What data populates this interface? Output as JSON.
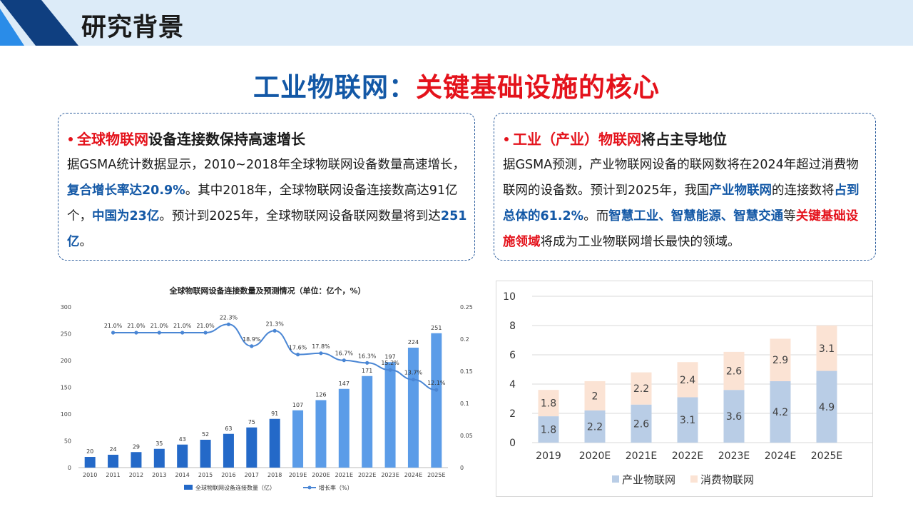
{
  "header": {
    "title": "研究背景"
  },
  "main_title": {
    "part1": "工业物联网：",
    "part2": "关键基础设施的核心"
  },
  "left_card": {
    "head_red": "全球物联网",
    "head_rest": "设备连接数保持高速增长",
    "body": [
      {
        "t": "据GSMA统计数据显示，2010~2018年全球物联网设备数量高速增长，",
        "s": ""
      },
      {
        "t": "复合增长率达20.9%",
        "s": "blue"
      },
      {
        "t": "。其中2018年，全球物联网设备连接数高达91亿个，",
        "s": ""
      },
      {
        "t": "中国为23亿",
        "s": "blue"
      },
      {
        "t": "。预计到2025年，全球物联网设备联网数量将到达",
        "s": ""
      },
      {
        "t": "251亿",
        "s": "blue"
      },
      {
        "t": "。",
        "s": ""
      }
    ]
  },
  "right_card": {
    "head_red": "工业（产业）物联网",
    "head_rest": "将占主导地位",
    "body": [
      {
        "t": "据GSMA预测，产业物联网设备的联网数将在2024年超过消费物联网的设备数。预计到2025年，我国",
        "s": ""
      },
      {
        "t": "产业物联网",
        "s": "blue"
      },
      {
        "t": "的连接数将",
        "s": ""
      },
      {
        "t": "占到总体的61.2%",
        "s": "blue"
      },
      {
        "t": "。而",
        "s": ""
      },
      {
        "t": "智慧工业、智慧能源、智慧交通",
        "s": "blue"
      },
      {
        "t": "等",
        "s": ""
      },
      {
        "t": "关键基础设施领域",
        "s": "red"
      },
      {
        "t": "将成为工业物联网增长最快的领域。",
        "s": ""
      }
    ]
  },
  "chart_data": [
    {
      "type": "bar",
      "title": "全球物联网设备连接数量及预测情况（单位：亿个，%）",
      "categories": [
        "2010",
        "2011",
        "2012",
        "2013",
        "2014",
        "2015",
        "2016",
        "2017",
        "2018",
        "2019E",
        "2020E",
        "2021E",
        "2022E",
        "2023E",
        "2024E",
        "2025E"
      ],
      "series": [
        {
          "name": "全球物联网设备连接数量（亿）",
          "kind": "bar",
          "axis": "left",
          "values": [
            20,
            24,
            29,
            35,
            43,
            52,
            63,
            75,
            91,
            107,
            126,
            147,
            171,
            197,
            224,
            251
          ],
          "colors": [
            "#2469c8",
            "#2469c8",
            "#2469c8",
            "#2469c8",
            "#2469c8",
            "#2469c8",
            "#2469c8",
            "#2469c8",
            "#2469c8",
            "#5b9ce8",
            "#5b9ce8",
            "#5b9ce8",
            "#5b9ce8",
            "#5b9ce8",
            "#5b9ce8",
            "#5b9ce8"
          ]
        },
        {
          "name": "增长率（%）",
          "kind": "line",
          "axis": "right",
          "values": [
            null,
            0.21,
            0.21,
            0.21,
            0.21,
            0.21,
            0.223,
            0.189,
            0.213,
            0.176,
            0.178,
            0.167,
            0.163,
            0.152,
            0.137,
            0.121
          ],
          "labels": [
            "",
            "21.0%",
            "21.0%",
            "21.0%",
            "21.0%",
            "21.0%",
            "22.3%",
            "18.9%",
            "21.3%",
            "17.6%",
            "17.8%",
            "16.7%",
            "16.3%",
            "15.2%",
            "13.7%",
            "12.1%"
          ],
          "color": "#4a86d4"
        }
      ],
      "ylim": [
        0,
        300
      ],
      "yticks": [
        "0",
        "50",
        "100",
        "150",
        "200",
        "250",
        "300"
      ],
      "y2lim": [
        0,
        0.25
      ],
      "y2ticks": [
        "0",
        "0.05",
        "0.1",
        "0.15",
        "0.2",
        "0.25"
      ],
      "legend": "bottom"
    },
    {
      "type": "bar",
      "stacked": true,
      "title": "",
      "categories": [
        "2019",
        "2020E",
        "2021E",
        "2022E",
        "2023E",
        "2024E",
        "2025E"
      ],
      "series": [
        {
          "name": "产业物联网",
          "values": [
            1.8,
            2.2,
            2.6,
            3.1,
            3.6,
            4.2,
            4.9
          ],
          "labels": [
            "1.8",
            "2.2",
            "2.6",
            "3.1",
            "3.6",
            "4.2",
            "4.9"
          ],
          "color": "#b9cde6"
        },
        {
          "name": "消费物联网",
          "values": [
            1.8,
            2,
            2.2,
            2.4,
            2.6,
            2.9,
            3.1
          ],
          "labels": [
            "1.8",
            "2",
            "2.2",
            "2.4",
            "2.6",
            "2.9",
            "3.1"
          ],
          "color": "#fbe3d4"
        }
      ],
      "ylim": [
        0,
        10
      ],
      "yticks": [
        "0",
        "2",
        "4",
        "6",
        "8",
        "10"
      ],
      "grid": true,
      "legend": "bottom"
    }
  ]
}
